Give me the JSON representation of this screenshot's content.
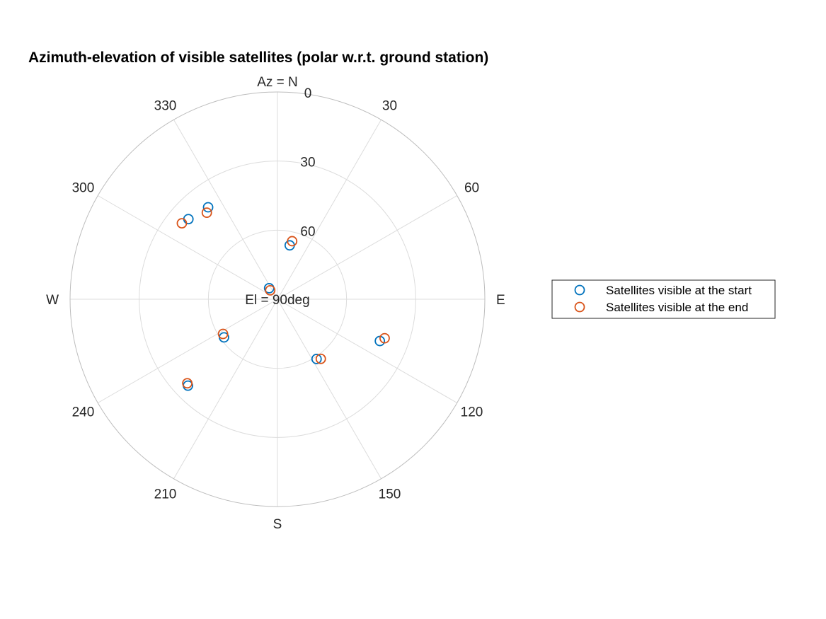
{
  "chart_data": {
    "type": "scatter",
    "coordinate_system": "polar",
    "title": "Azimuth-elevation of visible satellites (polar w.r.t. ground station)",
    "theta_zero_location": "top",
    "theta_direction": "clockwise",
    "r_axis_reversed": true,
    "rlim": [
      0,
      90
    ],
    "theta_ticks": [
      {
        "angle": 0,
        "label": "0"
      },
      {
        "angle": 30,
        "label": "30"
      },
      {
        "angle": 60,
        "label": "60"
      },
      {
        "angle": 90,
        "label": "E"
      },
      {
        "angle": 120,
        "label": "120"
      },
      {
        "angle": 150,
        "label": "150"
      },
      {
        "angle": 180,
        "label": "S"
      },
      {
        "angle": 210,
        "label": "210"
      },
      {
        "angle": 240,
        "label": "240"
      },
      {
        "angle": 270,
        "label": "W"
      },
      {
        "angle": 300,
        "label": "300"
      },
      {
        "angle": 330,
        "label": "330"
      }
    ],
    "north_label": "Az = N",
    "r_ticks": [
      {
        "value": 0,
        "label": "0"
      },
      {
        "value": 30,
        "label": "30"
      },
      {
        "value": 60,
        "label": "60"
      }
    ],
    "center_label": "El = 90deg",
    "grid": true,
    "legend_position": "right",
    "series": [
      {
        "name": "Satellites visible at the start",
        "color": "#0072BD",
        "marker": "o",
        "points": [
          {
            "az": 12.8,
            "el": 66.0
          },
          {
            "az": 323.0,
            "el": 40.0
          },
          {
            "az": 312.0,
            "el": 38.0
          },
          {
            "az": 323.0,
            "el": 84.0
          },
          {
            "az": 112.2,
            "el": 42.0
          },
          {
            "az": 146.8,
            "el": 59.0
          },
          {
            "az": 234.5,
            "el": 61.5
          },
          {
            "az": 226.0,
            "el": 36.0
          }
        ]
      },
      {
        "name": "Satellites visible at the end",
        "color": "#D95319",
        "marker": "o",
        "points": [
          {
            "az": 14.2,
            "el": 64.0
          },
          {
            "az": 320.8,
            "el": 41.5
          },
          {
            "az": 308.5,
            "el": 37.0
          },
          {
            "az": 321.0,
            "el": 85.0
          },
          {
            "az": 110.0,
            "el": 40.5
          },
          {
            "az": 144.0,
            "el": 58.0
          },
          {
            "az": 237.5,
            "el": 62.0
          },
          {
            "az": 227.0,
            "el": 36.5
          }
        ]
      }
    ]
  }
}
